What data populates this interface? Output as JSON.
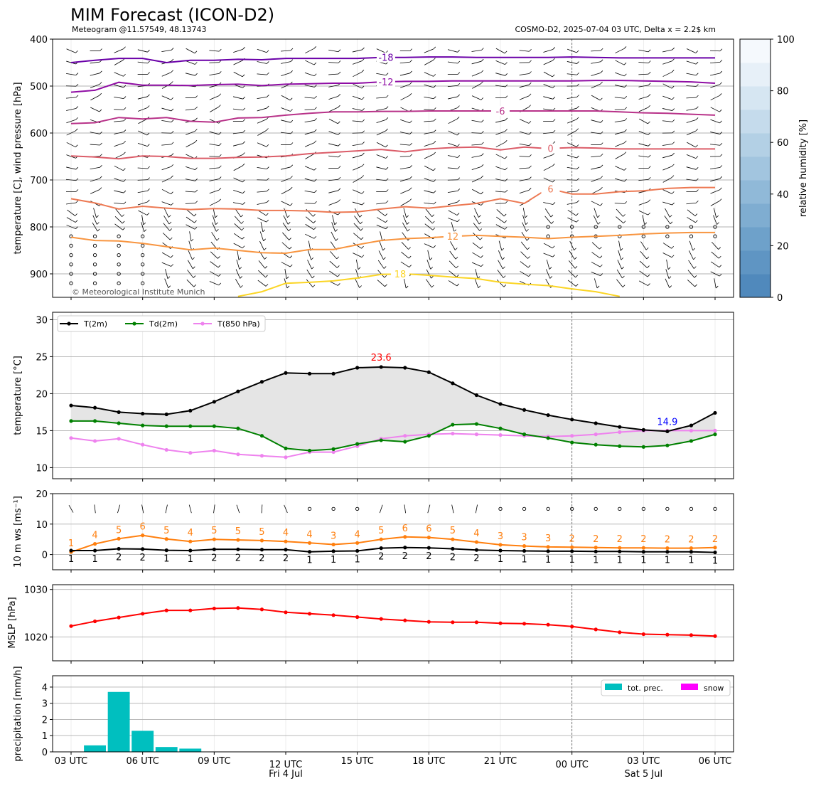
{
  "header": {
    "title": "MIM Forecast (ICON-D2)",
    "subtitle_left": "Meteogram @11.57549, 48.13743",
    "subtitle_right": "COSMO-D2, 2025-07-04 03 UTC, Delta x = 2.2$ km",
    "copyright": "© Meteorological Institute Munich"
  },
  "x_axis": {
    "tick_labels": [
      "03 UTC",
      "06 UTC",
      "09 UTC",
      "12 UTC",
      "15 UTC",
      "18 UTC",
      "21 UTC",
      "00 UTC",
      "03 UTC",
      "06 UTC"
    ],
    "day_labels": [
      "Fri 4 Jul",
      "Sat 5 Jul"
    ]
  },
  "chart_data": [
    {
      "id": "upper_air",
      "type": "contour",
      "ylabel": "temperature [C], wind pressure [hPa]",
      "ylim": [
        950,
        400
      ],
      "y_ticks": [
        400,
        500,
        600,
        700,
        800,
        900
      ],
      "y_axis_reversed": true,
      "colorbar": {
        "label": "relative humidity [%]",
        "ticks": [
          0,
          20,
          40,
          60,
          80,
          100
        ],
        "colors": [
          "#5089bc",
          "#5f95c3",
          "#6ea1ca",
          "#7fadd1",
          "#90b9d8",
          "#a2c5df",
          "#b3d0e5",
          "#c5dbec",
          "#d6e6f2",
          "#e7f0f8",
          "#f5f9fd"
        ]
      },
      "contours": [
        {
          "label": "-18",
          "color": "#6a00a8",
          "label_hour": 16.2,
          "p": [
            450,
            445,
            441,
            441,
            450,
            445,
            445,
            443,
            444,
            441,
            441,
            441,
            441,
            439,
            439,
            438,
            438,
            439,
            439,
            439,
            439,
            438,
            439,
            440,
            440,
            440,
            440,
            440
          ]
        },
        {
          "label": "-12",
          "color": "#8f0da4",
          "label_hour": 16.2,
          "p": [
            513,
            509,
            492,
            498,
            498,
            499,
            497,
            496,
            499,
            496,
            495,
            494,
            494,
            491,
            490,
            490,
            489,
            489,
            489,
            489,
            489,
            489,
            488,
            488,
            489,
            490,
            491,
            494
          ]
        },
        {
          "label": "-6",
          "color": "#b83289",
          "label_hour": 21.0,
          "p": [
            580,
            578,
            567,
            570,
            567,
            575,
            577,
            568,
            567,
            562,
            558,
            555,
            555,
            554,
            554,
            553,
            553,
            553,
            553,
            553,
            553,
            553,
            553,
            555,
            557,
            558,
            560,
            562
          ]
        },
        {
          "label": "0",
          "color": "#db5c68",
          "label_hour": 23.1,
          "p": [
            649,
            651,
            655,
            649,
            650,
            654,
            654,
            652,
            651,
            649,
            644,
            641,
            638,
            635,
            640,
            634,
            631,
            630,
            636,
            630,
            633,
            631,
            632,
            634,
            634,
            634,
            634,
            634
          ]
        },
        {
          "label": "6",
          "color": "#ed7953",
          "label_hour": 23.1,
          "p": [
            740,
            749,
            762,
            756,
            760,
            763,
            761,
            762,
            765,
            765,
            766,
            769,
            768,
            762,
            757,
            760,
            755,
            750,
            740,
            750,
            718,
            730,
            730,
            725,
            723,
            718,
            716,
            716
          ]
        },
        {
          "label": "12",
          "color": "#f89540",
          "label_hour": 19.0,
          "p": [
            822,
            829,
            830,
            835,
            842,
            849,
            845,
            850,
            855,
            856,
            848,
            848,
            838,
            829,
            825,
            823,
            820,
            818,
            820,
            822,
            825,
            822,
            820,
            818,
            815,
            813,
            812,
            812
          ]
        },
        {
          "label": "18",
          "color": "#fbd524",
          "label_hour": 16.8,
          "p": [
            null,
            null,
            null,
            null,
            null,
            null,
            null,
            948,
            938,
            920,
            918,
            915,
            909,
            901,
            900,
            903,
            907,
            910,
            918,
            922,
            925,
            932,
            938,
            948,
            null,
            null,
            null,
            null
          ]
        }
      ]
    },
    {
      "id": "temperature",
      "type": "line",
      "ylabel": "temperature [$^\\circ$C]",
      "ylim": [
        8.5,
        31
      ],
      "y_ticks": [
        10,
        15,
        20,
        25,
        30
      ],
      "legend": "upper-left",
      "hours": [
        3,
        4,
        5,
        6,
        7,
        8,
        9,
        10,
        11,
        12,
        13,
        14,
        15,
        16,
        17,
        18,
        19,
        20,
        21,
        22,
        23,
        24,
        25,
        26,
        27,
        28,
        29,
        30
      ],
      "series": [
        {
          "name": "T(2m)",
          "color": "#000000",
          "values": [
            18.4,
            18.1,
            17.5,
            17.3,
            17.2,
            17.7,
            18.9,
            20.3,
            21.6,
            22.8,
            22.7,
            22.7,
            23.5,
            23.6,
            23.5,
            22.9,
            21.4,
            19.8,
            18.6,
            17.8,
            17.1,
            16.5,
            16.0,
            15.5,
            15.1,
            14.9,
            15.7,
            17.4
          ]
        },
        {
          "name": "Td(2m)",
          "color": "#008000",
          "values": [
            16.3,
            16.3,
            16.0,
            15.7,
            15.6,
            15.6,
            15.6,
            15.3,
            14.3,
            12.6,
            12.3,
            12.5,
            13.2,
            13.7,
            13.5,
            14.3,
            15.8,
            15.9,
            15.3,
            14.5,
            14.0,
            13.4,
            13.1,
            12.9,
            12.8,
            13.0,
            13.6,
            14.5
          ]
        },
        {
          "name": "T(850 hPa)",
          "color": "#ee82ee",
          "values": [
            14.0,
            13.6,
            13.9,
            13.1,
            12.4,
            12.0,
            12.3,
            11.8,
            11.6,
            11.4,
            12.1,
            12.1,
            12.9,
            13.9,
            14.3,
            14.5,
            14.6,
            14.5,
            14.4,
            14.3,
            14.2,
            14.3,
            14.5,
            14.8,
            15.0,
            15.0,
            15.0,
            15.0
          ]
        }
      ],
      "annotations": [
        {
          "text": "23.6",
          "color": "#ff0000",
          "hour": 16,
          "value": 23.6
        },
        {
          "text": "14.9",
          "color": "#0000ff",
          "hour": 28,
          "value": 14.9
        }
      ]
    },
    {
      "id": "wind",
      "type": "line",
      "ylabel": "10 m ws [ms$^{-1}$]",
      "ylim": [
        -5,
        20
      ],
      "y_ticks": [
        0,
        10,
        20
      ],
      "hours": [
        3,
        4,
        5,
        6,
        7,
        8,
        9,
        10,
        11,
        12,
        13,
        14,
        15,
        16,
        17,
        18,
        19,
        20,
        21,
        22,
        23,
        24,
        25,
        26,
        27,
        28,
        29,
        30
      ],
      "series": [
        {
          "color": "#ff7f0e",
          "values": [
            0.8,
            3.5,
            5.2,
            6.3,
            5.1,
            4.3,
            5.0,
            4.8,
            4.6,
            4.3,
            3.8,
            3.3,
            3.8,
            5.0,
            5.8,
            5.6,
            5.0,
            4.1,
            3.2,
            2.8,
            2.5,
            2.4,
            2.3,
            2.2,
            2.2,
            2.1,
            2.1,
            2.3
          ]
        },
        {
          "color": "#000000",
          "values": [
            1.3,
            1.3,
            1.9,
            1.8,
            1.4,
            1.3,
            1.7,
            1.7,
            1.6,
            1.6,
            0.9,
            1.1,
            1.2,
            2.1,
            2.3,
            2.2,
            1.9,
            1.5,
            1.3,
            1.2,
            1.1,
            1.1,
            1.0,
            1.0,
            0.9,
            0.9,
            0.9,
            0.7
          ]
        }
      ],
      "gust_labels": [
        "1",
        "4",
        "5",
        "6",
        "5",
        "4",
        "5",
        "5",
        "5",
        "4",
        "4",
        "3",
        "4",
        "5",
        "6",
        "6",
        "5",
        "4",
        "3",
        "3",
        "3",
        "2",
        "2",
        "2",
        "2",
        "2",
        "2",
        "2"
      ],
      "speed_labels": [
        "1",
        "1",
        "2",
        "2",
        "1",
        "1",
        "2",
        "2",
        "2",
        "2",
        "1",
        "1",
        "1",
        "2",
        "2",
        "2",
        "2",
        "2",
        "1",
        "1",
        "1",
        "1",
        "1",
        "1",
        "1",
        "1",
        "1",
        "1"
      ]
    },
    {
      "id": "mslp",
      "type": "line",
      "ylabel": "MSLP [hPa]",
      "ylim": [
        1015,
        1031
      ],
      "y_ticks": [
        1020,
        1030
      ],
      "hours": [
        3,
        4,
        5,
        6,
        7,
        8,
        9,
        10,
        11,
        12,
        13,
        14,
        15,
        16,
        17,
        18,
        19,
        20,
        21,
        22,
        23,
        24,
        25,
        26,
        27,
        28,
        29,
        30
      ],
      "series": [
        {
          "color": "#ff0000",
          "values": [
            1022.3,
            1023.3,
            1024.1,
            1024.9,
            1025.6,
            1025.6,
            1026.0,
            1026.1,
            1025.8,
            1025.2,
            1024.9,
            1024.6,
            1024.2,
            1023.8,
            1023.5,
            1023.2,
            1023.1,
            1023.1,
            1022.9,
            1022.8,
            1022.6,
            1022.2,
            1021.6,
            1021.0,
            1020.6,
            1020.5,
            1020.4,
            1020.2
          ]
        }
      ]
    },
    {
      "id": "precipitation",
      "type": "bar",
      "ylabel": "precipitation [mm/h]",
      "ylim": [
        0,
        4.7
      ],
      "y_ticks": [
        0,
        1,
        2,
        3,
        4
      ],
      "legend": "upper-right",
      "hours": [
        4,
        5,
        6,
        7,
        8
      ],
      "series": [
        {
          "name": "tot. prec.",
          "color": "#00bfbf",
          "values": [
            0.4,
            3.7,
            1.3,
            0.3,
            0.2
          ]
        },
        {
          "name": "snow",
          "color": "#ff00ff",
          "values": [
            0,
            0,
            0,
            0,
            0
          ]
        }
      ]
    }
  ]
}
